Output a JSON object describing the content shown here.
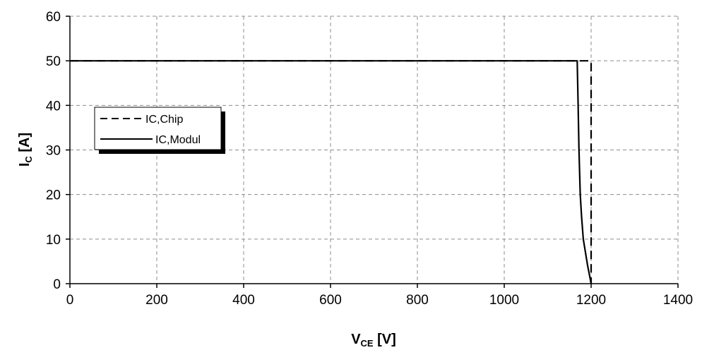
{
  "chart_data": {
    "type": "line",
    "xlabel": {
      "main": "V",
      "sub": "CE",
      "unit": " [V]"
    },
    "ylabel": {
      "main": "I",
      "sub": "C",
      "unit": " [A]"
    },
    "xlim": [
      0,
      1400
    ],
    "ylim": [
      0,
      60
    ],
    "x_ticks": [
      0,
      200,
      400,
      600,
      800,
      1000,
      1200,
      1400
    ],
    "y_ticks": [
      0,
      10,
      20,
      30,
      40,
      50,
      60
    ],
    "grid": true,
    "legend_position": "left",
    "series": [
      {
        "name": "IC,Chip",
        "style": "dashed",
        "color": "#000000",
        "points": [
          [
            0,
            50
          ],
          [
            1200,
            50
          ],
          [
            1200,
            0
          ]
        ]
      },
      {
        "name": "IC,Modul",
        "style": "solid",
        "color": "#000000",
        "points": [
          [
            0,
            50
          ],
          [
            1168,
            50
          ],
          [
            1170,
            40
          ],
          [
            1172,
            30
          ],
          [
            1175,
            20
          ],
          [
            1178,
            15
          ],
          [
            1182,
            10
          ],
          [
            1187,
            7
          ],
          [
            1192,
            4
          ],
          [
            1197,
            1.5
          ],
          [
            1200,
            0
          ]
        ]
      }
    ]
  }
}
